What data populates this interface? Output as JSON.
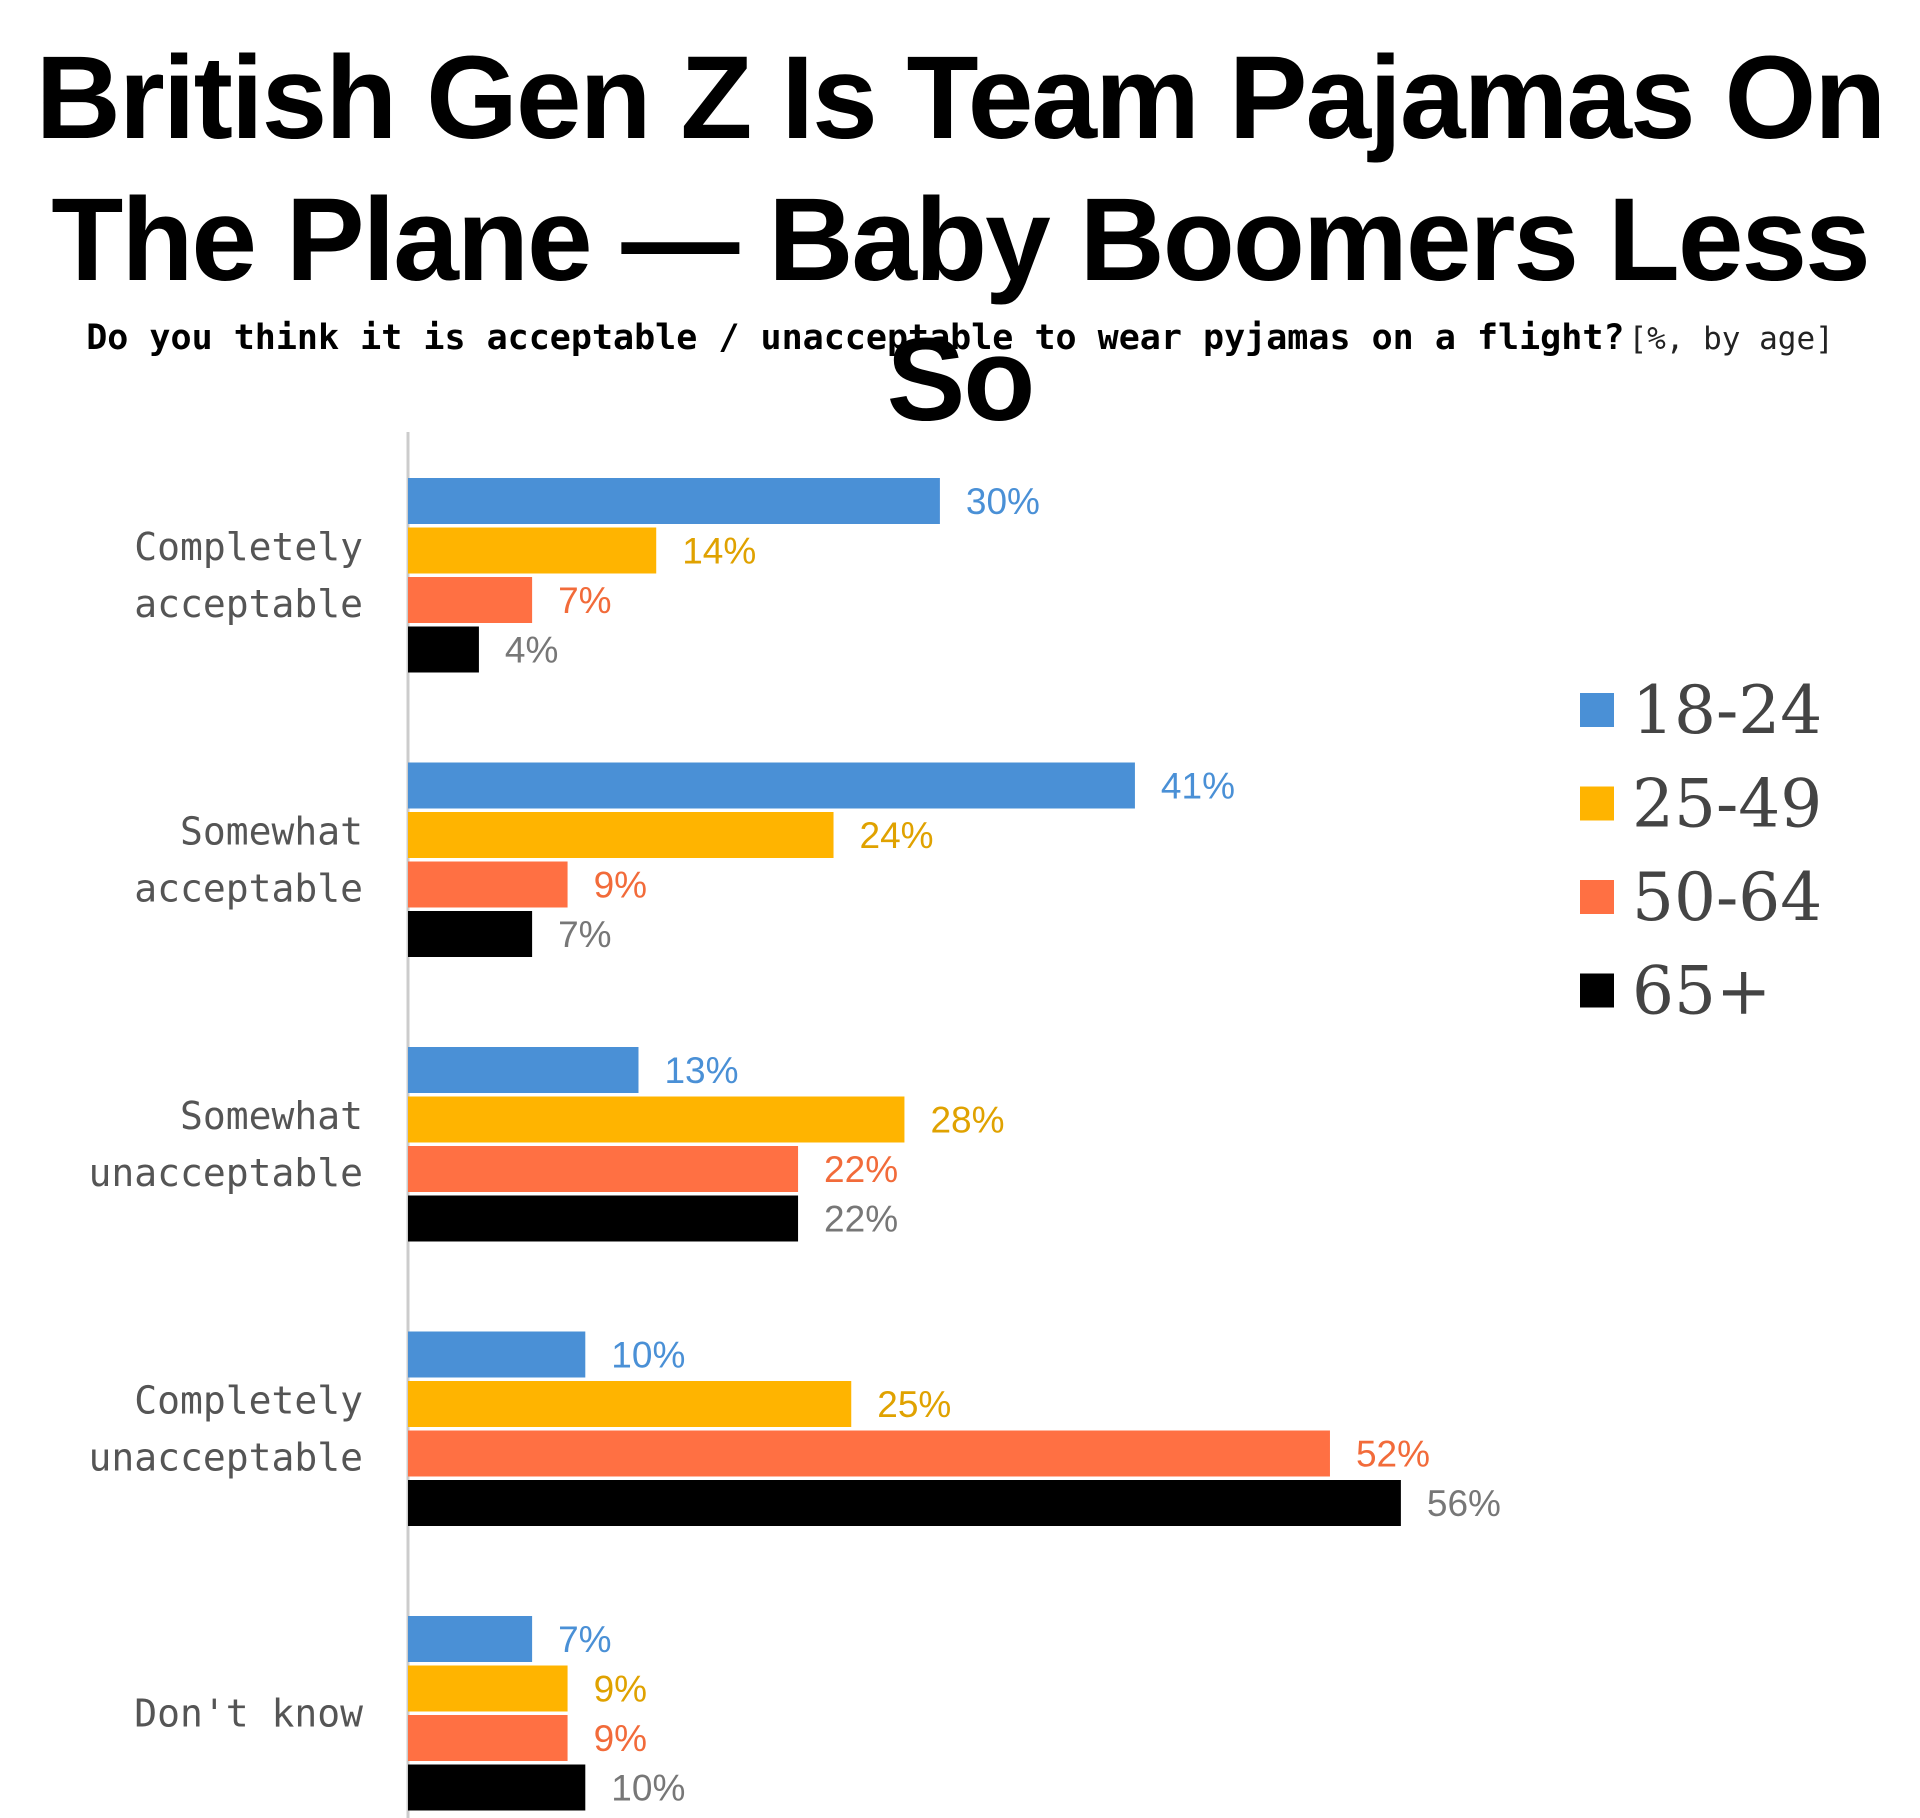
{
  "title_line1": "British Gen Z Is Team Pajamas On",
  "title_line2": "The Plane — Baby Boomers Less So",
  "subtitle_question": "Do you think it is acceptable / unacceptable to wear pyjamas on a flight?",
  "subtitle_unit": "[%, by age]",
  "colors": {
    "18-24": "#4A90D6",
    "25-49": "#FFB400",
    "50-64": "#FF7043",
    "65+": "#000000",
    "axis": "#CCCCCC"
  },
  "chart_data": {
    "type": "bar",
    "orientation": "horizontal",
    "title": "British Gen Z Is Team Pajamas On The Plane — Baby Boomers Less So",
    "subtitle": "Do you think it is acceptable / unacceptable to wear pyjamas on a flight? [%, by age]",
    "categories": [
      [
        "Completely",
        "acceptable"
      ],
      [
        "Somewhat",
        "acceptable"
      ],
      [
        "Somewhat",
        "unacceptable"
      ],
      [
        "Completely",
        "unacceptable"
      ],
      [
        "Don't know"
      ]
    ],
    "series": [
      {
        "name": "18-24",
        "color": "#4A90D6",
        "label_color": "#4A90D6",
        "values": [
          30,
          41,
          13,
          10,
          7
        ]
      },
      {
        "name": "25-49",
        "color": "#FFB400",
        "label_color": "#E0A200",
        "values": [
          14,
          24,
          28,
          25,
          9
        ]
      },
      {
        "name": "50-64",
        "color": "#FF7043",
        "label_color": "#F26B3A",
        "values": [
          7,
          9,
          22,
          52,
          9
        ]
      },
      {
        "name": "65+",
        "color": "#000000",
        "label_color": "#777777",
        "values": [
          4,
          7,
          22,
          56,
          10
        ]
      }
    ],
    "value_suffix": "%",
    "xlim": [
      0,
      56
    ],
    "grid": false,
    "legend_position": "right"
  }
}
